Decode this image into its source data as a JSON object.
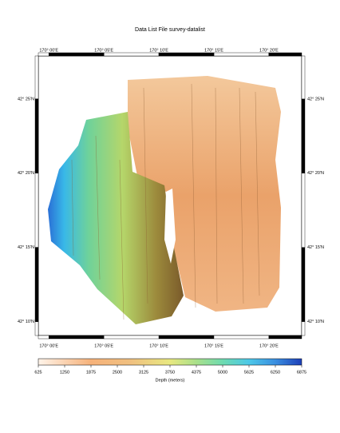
{
  "map": {
    "title": "Data List File survey-datalist",
    "lonlim": [
      169.984,
      170.383
    ],
    "latlim": [
      42.151,
      42.465
    ],
    "lonticks": [
      {
        "value": 170.0,
        "label": "170° 00'E"
      },
      {
        "value": 170.08333,
        "label": "170° 05'E"
      },
      {
        "value": 170.16667,
        "label": "170° 10'E"
      },
      {
        "value": 170.25,
        "label": "170° 15'E"
      },
      {
        "value": 170.33333,
        "label": "170° 20'E"
      }
    ],
    "latticks": [
      {
        "value": 42.16667,
        "label": "42° 10'N"
      },
      {
        "value": 42.25,
        "label": "42° 15'N"
      },
      {
        "value": 42.33333,
        "label": "42° 20'N"
      },
      {
        "value": 42.41667,
        "label": "42° 25'N"
      }
    ],
    "colorbar": {
      "label": "Depth (meters)",
      "lim": [
        625,
        6875
      ],
      "ticks": [
        625,
        1250,
        1875,
        2500,
        3125,
        3750,
        4375,
        5000,
        5625,
        6250,
        6875
      ]
    }
  }
}
